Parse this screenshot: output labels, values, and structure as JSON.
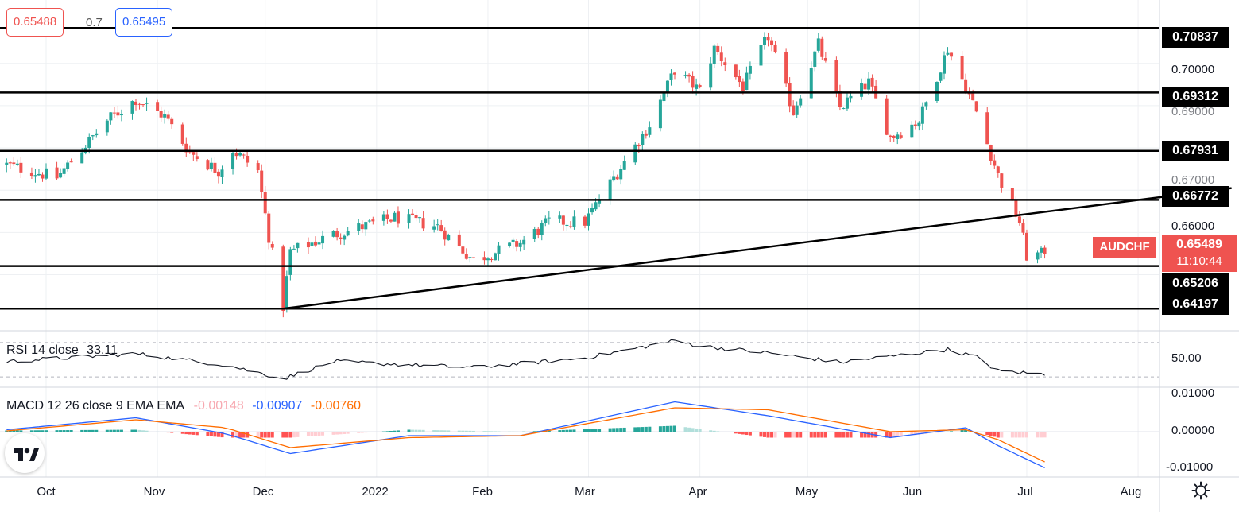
{
  "header": {
    "ask": "0.65488",
    "spread": "0.7",
    "bid": "0.65495"
  },
  "symbol": "AUDCHF",
  "last_price": "0.65489",
  "countdown": "11:10:44",
  "levels": [
    "0.70837",
    "0.69312",
    "0.67931",
    "0.66772",
    "0.65206",
    "0.64197"
  ],
  "price_axis_labels": [
    "0.70000",
    "0.69000",
    "0.67000",
    "0.66000"
  ],
  "rsi": {
    "label": "RSI 14 close",
    "value": "33.11",
    "axis_label": "50.00"
  },
  "macd": {
    "label": "MACD 12 26 close 9 EMA EMA",
    "hist": "-0.00148",
    "macd": "-0.00907",
    "signal": "-0.00760",
    "axis_labels": [
      "0.01000",
      "0.00000",
      "-0.01000"
    ]
  },
  "time_axis": [
    "Oct",
    "Nov",
    "Dec",
    "2022",
    "Feb",
    "Mar",
    "Apr",
    "May",
    "Jun",
    "Jul",
    "Aug"
  ],
  "colors": {
    "up": "#26a69a",
    "down": "#ef5350",
    "macd": "#2962ff",
    "signal": "#ff6d00",
    "level": "#000000"
  },
  "chart_data": {
    "type": "candlestick",
    "title": "AUDCHF",
    "ylim": [
      0.6375,
      0.7135
    ],
    "horizontal_levels": [
      0.70837,
      0.69312,
      0.67931,
      0.66772,
      0.65206,
      0.64197
    ],
    "trendline": {
      "from": {
        "date": "2021-12-06",
        "price": 0.64197
      },
      "to": {
        "date": "2022-08-27",
        "price": 0.6705
      }
    },
    "close_path": [
      {
        "date": "2021-09-20",
        "close": 0.676
      },
      {
        "date": "2021-10-04",
        "close": 0.673
      },
      {
        "date": "2021-10-18",
        "close": 0.6865
      },
      {
        "date": "2021-10-26",
        "close": 0.6915
      },
      {
        "date": "2021-11-03",
        "close": 0.6875
      },
      {
        "date": "2021-11-10",
        "close": 0.679
      },
      {
        "date": "2021-11-18",
        "close": 0.6745
      },
      {
        "date": "2021-11-22",
        "close": 0.6795
      },
      {
        "date": "2021-11-29",
        "close": 0.6745
      },
      {
        "date": "2021-12-02",
        "close": 0.659
      },
      {
        "date": "2021-12-06",
        "close": 0.6425
      },
      {
        "date": "2021-12-08",
        "close": 0.6555
      },
      {
        "date": "2021-12-20",
        "close": 0.6595
      },
      {
        "date": "2022-01-06",
        "close": 0.6635
      },
      {
        "date": "2022-01-18",
        "close": 0.6615
      },
      {
        "date": "2022-01-24",
        "close": 0.6565
      },
      {
        "date": "2022-01-28",
        "close": 0.6535
      },
      {
        "date": "2022-02-10",
        "close": 0.6575
      },
      {
        "date": "2022-02-18",
        "close": 0.6625
      },
      {
        "date": "2022-02-28",
        "close": 0.6625
      },
      {
        "date": "2022-03-10",
        "close": 0.6755
      },
      {
        "date": "2022-03-18",
        "close": 0.6855
      },
      {
        "date": "2022-03-25",
        "close": 0.6985
      },
      {
        "date": "2022-04-01",
        "close": 0.6935
      },
      {
        "date": "2022-04-05",
        "close": 0.7035
      },
      {
        "date": "2022-04-13",
        "close": 0.6945
      },
      {
        "date": "2022-04-20",
        "close": 0.7065
      },
      {
        "date": "2022-04-27",
        "close": 0.6885
      },
      {
        "date": "2022-05-04",
        "close": 0.7045
      },
      {
        "date": "2022-05-10",
        "close": 0.6895
      },
      {
        "date": "2022-05-18",
        "close": 0.6955
      },
      {
        "date": "2022-05-24",
        "close": 0.6825
      },
      {
        "date": "2022-06-01",
        "close": 0.6865
      },
      {
        "date": "2022-06-09",
        "close": 0.7035
      },
      {
        "date": "2022-06-14",
        "close": 0.6945
      },
      {
        "date": "2022-06-17",
        "close": 0.6885
      },
      {
        "date": "2022-06-23",
        "close": 0.6735
      },
      {
        "date": "2022-06-29",
        "close": 0.6625
      },
      {
        "date": "2022-07-01",
        "close": 0.6545
      },
      {
        "date": "2022-07-06",
        "close": 0.65489
      }
    ],
    "rsi_path": [
      {
        "date": "2021-09-20",
        "value": 48
      },
      {
        "date": "2021-10-26",
        "value": 57
      },
      {
        "date": "2021-11-20",
        "value": 44
      },
      {
        "date": "2021-12-06",
        "value": 28
      },
      {
        "date": "2021-12-20",
        "value": 48
      },
      {
        "date": "2022-01-28",
        "value": 41
      },
      {
        "date": "2022-02-28",
        "value": 52
      },
      {
        "date": "2022-03-25",
        "value": 72
      },
      {
        "date": "2022-04-01",
        "value": 66
      },
      {
        "date": "2022-04-20",
        "value": 58
      },
      {
        "date": "2022-05-10",
        "value": 47
      },
      {
        "date": "2022-06-09",
        "value": 62
      },
      {
        "date": "2022-06-17",
        "value": 53
      },
      {
        "date": "2022-06-23",
        "value": 37
      },
      {
        "date": "2022-07-06",
        "value": 33.11
      }
    ],
    "rsi_range": [
      20,
      80
    ],
    "macd_path": [
      {
        "date": "2021-09-20",
        "macd": 0.0005,
        "signal": 0.0002
      },
      {
        "date": "2021-10-26",
        "macd": 0.0035,
        "signal": 0.003
      },
      {
        "date": "2021-11-20",
        "macd": -0.0005,
        "signal": 0.001
      },
      {
        "date": "2021-12-08",
        "macd": -0.0055,
        "signal": -0.004
      },
      {
        "date": "2022-01-10",
        "macd": -0.001,
        "signal": -0.0015
      },
      {
        "date": "2022-02-10",
        "macd": -0.001,
        "signal": -0.001
      },
      {
        "date": "2022-03-25",
        "macd": 0.0075,
        "signal": 0.006
      },
      {
        "date": "2022-04-20",
        "macd": 0.004,
        "signal": 0.0055
      },
      {
        "date": "2022-05-24",
        "macd": -0.0015,
        "signal": 0.0
      },
      {
        "date": "2022-06-14",
        "macd": 0.001,
        "signal": 0.0005
      },
      {
        "date": "2022-06-23",
        "macd": -0.0035,
        "signal": -0.002
      },
      {
        "date": "2022-07-06",
        "macd": -0.00907,
        "signal": -0.0076
      }
    ],
    "macd_range": [
      -0.011,
      0.011
    ],
    "xlabel": "",
    "ylabel": ""
  }
}
